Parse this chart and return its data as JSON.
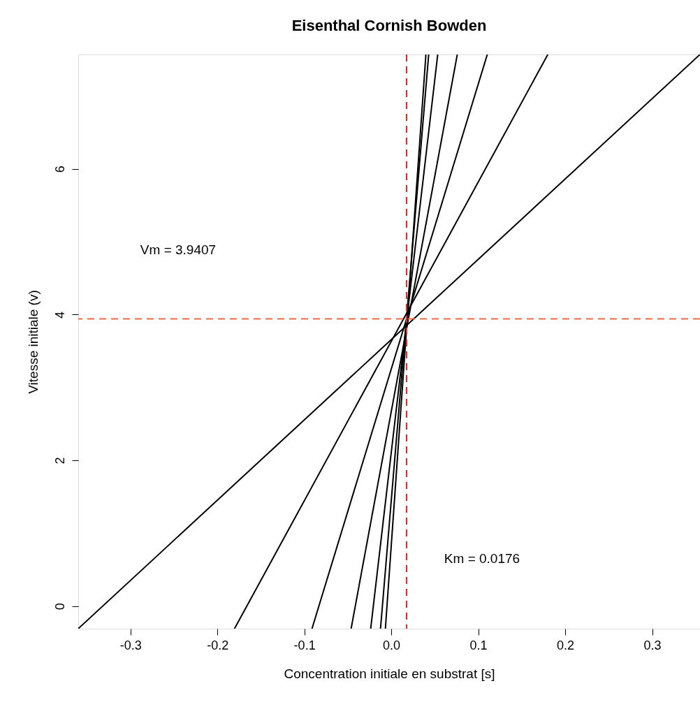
{
  "chart_data": {
    "type": "line",
    "title": "Eisenthal Cornish Bowden",
    "xlabel": "Concentration initiale en substrat [s]",
    "ylabel": "Vitesse initiale (v)",
    "xlim": [
      -0.36,
      0.355
    ],
    "ylim": [
      -0.31,
      7.57
    ],
    "xticks": [
      {
        "value": -0.3,
        "label": "-0.3"
      },
      {
        "value": -0.2,
        "label": "-0.2"
      },
      {
        "value": -0.1,
        "label": "-0.1"
      },
      {
        "value": 0.0,
        "label": "0.0"
      },
      {
        "value": 0.1,
        "label": "0.1"
      },
      {
        "value": 0.2,
        "label": "0.2"
      },
      {
        "value": 0.3,
        "label": "0.3"
      }
    ],
    "yticks": [
      0,
      2,
      4,
      6
    ],
    "grid": false,
    "marker": "none",
    "line_style": "solid",
    "series": [
      {
        "color": "#000000",
        "x": [
          -0.36,
          0.355
        ],
        "values": [
          -0.31,
          7.57
        ]
      },
      {
        "color": "#000000",
        "x": [
          -0.1803,
          0.18
        ],
        "values": [
          -0.31,
          7.57
        ]
      },
      {
        "color": "#000000",
        "x": [
          -0.0912,
          0.1104
        ],
        "values": [
          -0.31,
          7.57
        ]
      },
      {
        "color": "#000000",
        "x": [
          -0.0462,
          0.0759
        ],
        "values": [
          -0.31,
          7.57
        ]
      },
      {
        "color": "#000000",
        "x": [
          -0.0237,
          0.0534
        ],
        "values": [
          -0.31,
          7.57
        ]
      },
      {
        "color": "#000000",
        "x": [
          -0.0124,
          0.043
        ],
        "values": [
          -0.31,
          7.57
        ]
      },
      {
        "color": "#000000",
        "x": [
          -0.0068,
          0.0398
        ],
        "values": [
          -0.31,
          7.57
        ]
      }
    ],
    "ref_lines": [
      {
        "axis": "x",
        "value": 0.0176,
        "color": "#e8291c",
        "line_style": "dashed"
      },
      {
        "axis": "y",
        "value": 3.9407,
        "color": "#f26a45",
        "line_style": "dashed"
      }
    ],
    "annotations": [
      "Vm = 3.9407",
      "Km = 0.0176"
    ]
  }
}
